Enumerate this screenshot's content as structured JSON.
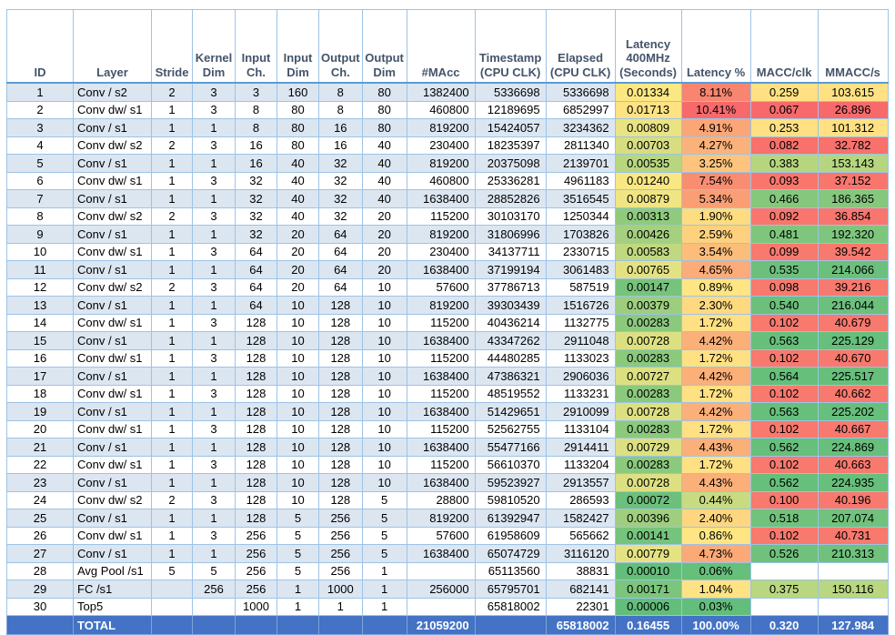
{
  "table": {
    "columns": [
      {
        "label": "ID"
      },
      {
        "label": "Layer"
      },
      {
        "label": "Stride"
      },
      {
        "label": "Kernel\nDim"
      },
      {
        "label": "Input\nCh."
      },
      {
        "label": "Input\nDim"
      },
      {
        "label": "Output\nCh."
      },
      {
        "label": "Output\nDim"
      },
      {
        "label": "#MAcc"
      },
      {
        "label": "Timestamp\n(CPU CLK)"
      },
      {
        "label": "Elapsed\n(CPU CLK)"
      },
      {
        "label": "Latency\n400MHz\n(Seconds)"
      },
      {
        "label": "Latency %"
      },
      {
        "label": "MACC/clk"
      },
      {
        "label": "MMACC/s"
      }
    ],
    "rows": [
      {
        "id": "1",
        "layer": "Conv / s2",
        "stride": "2",
        "kernel": "3",
        "in_ch": "3",
        "in_dim": "160",
        "out_ch": "8",
        "out_dim": "80",
        "macc": "1382400",
        "timestamp": "5336698",
        "elapsed": "5336698",
        "latency": "0.01334",
        "latency_bg": "#FCE883",
        "pct": "8.11%",
        "pct_bg": "#F8856F",
        "macc_clk": "0.259",
        "macc_clk_bg": "#FFE183",
        "mmacc_s": "103.615",
        "mmacc_s_bg": "#FFE183"
      },
      {
        "id": "2",
        "layer": "Conv dw/ s1",
        "stride": "1",
        "kernel": "3",
        "in_ch": "8",
        "in_dim": "80",
        "out_ch": "8",
        "out_dim": "80",
        "macc": "460800",
        "timestamp": "12189695",
        "elapsed": "6852997",
        "latency": "0.01713",
        "latency_bg": "#FFE283",
        "pct": "10.41%",
        "pct_bg": "#F8696B",
        "macc_clk": "0.067",
        "macc_clk_bg": "#F8696B",
        "mmacc_s": "26.896",
        "mmacc_s_bg": "#F8696B"
      },
      {
        "id": "3",
        "layer": "Conv / s1",
        "stride": "1",
        "kernel": "1",
        "in_ch": "8",
        "in_dim": "80",
        "out_ch": "16",
        "out_dim": "80",
        "macc": "819200",
        "timestamp": "15424057",
        "elapsed": "3234362",
        "latency": "0.00809",
        "latency_bg": "#E9E383",
        "pct": "4.91%",
        "pct_bg": "#FBA677",
        "macc_clk": "0.253",
        "macc_clk_bg": "#FFE183",
        "mmacc_s": "101.312",
        "mmacc_s_bg": "#FFE183"
      },
      {
        "id": "4",
        "layer": "Conv dw/ s2",
        "stride": "2",
        "kernel": "3",
        "in_ch": "16",
        "in_dim": "80",
        "out_ch": "16",
        "out_dim": "40",
        "macc": "230400",
        "timestamp": "18235397",
        "elapsed": "2811340",
        "latency": "0.00703",
        "latency_bg": "#D7DE82",
        "pct": "4.27%",
        "pct_bg": "#FBB27A",
        "macc_clk": "0.082",
        "macc_clk_bg": "#F8716C",
        "mmacc_s": "32.782",
        "mmacc_s_bg": "#F8716C"
      },
      {
        "id": "5",
        "layer": "Conv / s1",
        "stride": "1",
        "kernel": "1",
        "in_ch": "16",
        "in_dim": "40",
        "out_ch": "32",
        "out_dim": "40",
        "macc": "819200",
        "timestamp": "20375098",
        "elapsed": "2139701",
        "latency": "0.00535",
        "latency_bg": "#B7D67F",
        "pct": "3.25%",
        "pct_bg": "#FCC47C",
        "macc_clk": "0.383",
        "macc_clk_bg": "#B5D67F",
        "mmacc_s": "153.143",
        "mmacc_s_bg": "#B5D67F"
      },
      {
        "id": "6",
        "layer": "Conv dw/ s1",
        "stride": "1",
        "kernel": "3",
        "in_ch": "32",
        "in_dim": "40",
        "out_ch": "32",
        "out_dim": "40",
        "macc": "460800",
        "timestamp": "25336281",
        "elapsed": "4961183",
        "latency": "0.01240",
        "latency_bg": "#F8E783",
        "pct": "7.54%",
        "pct_bg": "#F98D72",
        "macc_clk": "0.093",
        "macc_clk_bg": "#F8766D",
        "mmacc_s": "37.152",
        "mmacc_s_bg": "#F8766D"
      },
      {
        "id": "7",
        "layer": "Conv / s1",
        "stride": "1",
        "kernel": "1",
        "in_ch": "32",
        "in_dim": "40",
        "out_ch": "32",
        "out_dim": "40",
        "macc": "1638400",
        "timestamp": "28852826",
        "elapsed": "3516545",
        "latency": "0.00879",
        "latency_bg": "#EFE584",
        "pct": "5.34%",
        "pct_bg": "#FA9F75",
        "macc_clk": "0.466",
        "macc_clk_bg": "#84C77D",
        "mmacc_s": "186.365",
        "mmacc_s_bg": "#84C77D"
      },
      {
        "id": "8",
        "layer": "Conv dw/ s2",
        "stride": "2",
        "kernel": "3",
        "in_ch": "32",
        "in_dim": "40",
        "out_ch": "32",
        "out_dim": "20",
        "macc": "115200",
        "timestamp": "30103170",
        "elapsed": "1250344",
        "latency": "0.00313",
        "latency_bg": "#90CB7D",
        "pct": "1.90%",
        "pct_bg": "#FEDC81",
        "macc_clk": "0.092",
        "macc_clk_bg": "#F8766D",
        "mmacc_s": "36.854",
        "mmacc_s_bg": "#F8766D"
      },
      {
        "id": "9",
        "layer": "Conv / s1",
        "stride": "1",
        "kernel": "1",
        "in_ch": "32",
        "in_dim": "20",
        "out_ch": "64",
        "out_dim": "20",
        "macc": "819200",
        "timestamp": "31806996",
        "elapsed": "1703826",
        "latency": "0.00426",
        "latency_bg": "#A4D07F",
        "pct": "2.59%",
        "pct_bg": "#FDD17E",
        "macc_clk": "0.481",
        "macc_clk_bg": "#7EC67D",
        "mmacc_s": "192.320",
        "mmacc_s_bg": "#7EC67D"
      },
      {
        "id": "10",
        "layer": "Conv dw/ s1",
        "stride": "1",
        "kernel": "3",
        "in_ch": "64",
        "in_dim": "20",
        "out_ch": "64",
        "out_dim": "20",
        "macc": "230400",
        "timestamp": "34137711",
        "elapsed": "2330715",
        "latency": "0.00583",
        "latency_bg": "#C0D880",
        "pct": "3.54%",
        "pct_bg": "#FCBD7B",
        "macc_clk": "0.099",
        "macc_clk_bg": "#F8796E",
        "mmacc_s": "39.542",
        "mmacc_s_bg": "#F8796E"
      },
      {
        "id": "11",
        "layer": "Conv / s1",
        "stride": "1",
        "kernel": "1",
        "in_ch": "64",
        "in_dim": "20",
        "out_ch": "64",
        "out_dim": "20",
        "macc": "1638400",
        "timestamp": "37199194",
        "elapsed": "3061483",
        "latency": "0.00765",
        "latency_bg": "#E3E283",
        "pct": "4.65%",
        "pct_bg": "#FBAC78",
        "macc_clk": "0.535",
        "macc_clk_bg": "#6CC07C",
        "mmacc_s": "214.066",
        "mmacc_s_bg": "#6CC07C"
      },
      {
        "id": "12",
        "layer": "Conv dw/ s2",
        "stride": "2",
        "kernel": "3",
        "in_ch": "64",
        "in_dim": "20",
        "out_ch": "64",
        "out_dim": "10",
        "macc": "57600",
        "timestamp": "37786713",
        "elapsed": "587519",
        "latency": "0.00147",
        "latency_bg": "#76C37C",
        "pct": "0.89%",
        "pct_bg": "#FFE583",
        "macc_clk": "0.098",
        "macc_clk_bg": "#F8796E",
        "mmacc_s": "39.216",
        "mmacc_s_bg": "#F8796E"
      },
      {
        "id": "13",
        "layer": "Conv / s1",
        "stride": "1",
        "kernel": "1",
        "in_ch": "64",
        "in_dim": "10",
        "out_ch": "128",
        "out_dim": "10",
        "macc": "819200",
        "timestamp": "39303439",
        "elapsed": "1516726",
        "latency": "0.00379",
        "latency_bg": "#9CCE7E",
        "pct": "2.30%",
        "pct_bg": "#FED980",
        "macc_clk": "0.540",
        "macc_clk_bg": "#6CC07C",
        "mmacc_s": "216.044",
        "mmacc_s_bg": "#6CC07C"
      },
      {
        "id": "14",
        "layer": "Conv dw/ s1",
        "stride": "1",
        "kernel": "3",
        "in_ch": "128",
        "in_dim": "10",
        "out_ch": "128",
        "out_dim": "10",
        "macc": "115200",
        "timestamp": "40436214",
        "elapsed": "1132775",
        "latency": "0.00283",
        "latency_bg": "#8BC97D",
        "pct": "1.72%",
        "pct_bg": "#FFE083",
        "macc_clk": "0.102",
        "macc_clk_bg": "#F8796E",
        "mmacc_s": "40.679",
        "mmacc_s_bg": "#F8796E"
      },
      {
        "id": "15",
        "layer": "Conv / s1",
        "stride": "1",
        "kernel": "1",
        "in_ch": "128",
        "in_dim": "10",
        "out_ch": "128",
        "out_dim": "10",
        "macc": "1638400",
        "timestamp": "43347262",
        "elapsed": "2911048",
        "latency": "0.00728",
        "latency_bg": "#DCE082",
        "pct": "4.42%",
        "pct_bg": "#FBAF79",
        "macc_clk": "0.563",
        "macc_clk_bg": "#66BF7B",
        "mmacc_s": "225.129",
        "mmacc_s_bg": "#66BF7B"
      },
      {
        "id": "16",
        "layer": "Conv dw/ s1",
        "stride": "1",
        "kernel": "3",
        "in_ch": "128",
        "in_dim": "10",
        "out_ch": "128",
        "out_dim": "10",
        "macc": "115200",
        "timestamp": "44480285",
        "elapsed": "1133023",
        "latency": "0.00283",
        "latency_bg": "#8BC97D",
        "pct": "1.72%",
        "pct_bg": "#FFE083",
        "macc_clk": "0.102",
        "macc_clk_bg": "#F8796E",
        "mmacc_s": "40.670",
        "mmacc_s_bg": "#F8796E"
      },
      {
        "id": "17",
        "layer": "Conv / s1",
        "stride": "1",
        "kernel": "1",
        "in_ch": "128",
        "in_dim": "10",
        "out_ch": "128",
        "out_dim": "10",
        "macc": "1638400",
        "timestamp": "47386321",
        "elapsed": "2906036",
        "latency": "0.00727",
        "latency_bg": "#DCE082",
        "pct": "4.42%",
        "pct_bg": "#FBAF79",
        "macc_clk": "0.564",
        "macc_clk_bg": "#66BF7B",
        "mmacc_s": "225.517",
        "mmacc_s_bg": "#66BF7B"
      },
      {
        "id": "18",
        "layer": "Conv dw/ s1",
        "stride": "1",
        "kernel": "3",
        "in_ch": "128",
        "in_dim": "10",
        "out_ch": "128",
        "out_dim": "10",
        "macc": "115200",
        "timestamp": "48519552",
        "elapsed": "1133231",
        "latency": "0.00283",
        "latency_bg": "#8BC97D",
        "pct": "1.72%",
        "pct_bg": "#FFE083",
        "macc_clk": "0.102",
        "macc_clk_bg": "#F8796E",
        "mmacc_s": "40.662",
        "mmacc_s_bg": "#F8796E"
      },
      {
        "id": "19",
        "layer": "Conv / s1",
        "stride": "1",
        "kernel": "1",
        "in_ch": "128",
        "in_dim": "10",
        "out_ch": "128",
        "out_dim": "10",
        "macc": "1638400",
        "timestamp": "51429651",
        "elapsed": "2910099",
        "latency": "0.00728",
        "latency_bg": "#DCE082",
        "pct": "4.42%",
        "pct_bg": "#FBAF79",
        "macc_clk": "0.563",
        "macc_clk_bg": "#66BF7B",
        "mmacc_s": "225.202",
        "mmacc_s_bg": "#66BF7B"
      },
      {
        "id": "20",
        "layer": "Conv dw/ s1",
        "stride": "1",
        "kernel": "3",
        "in_ch": "128",
        "in_dim": "10",
        "out_ch": "128",
        "out_dim": "10",
        "macc": "115200",
        "timestamp": "52562755",
        "elapsed": "1133104",
        "latency": "0.00283",
        "latency_bg": "#8BC97D",
        "pct": "1.72%",
        "pct_bg": "#FFE083",
        "macc_clk": "0.102",
        "macc_clk_bg": "#F8796E",
        "mmacc_s": "40.667",
        "mmacc_s_bg": "#F8796E"
      },
      {
        "id": "21",
        "layer": "Conv / s1",
        "stride": "1",
        "kernel": "1",
        "in_ch": "128",
        "in_dim": "10",
        "out_ch": "128",
        "out_dim": "10",
        "macc": "1638400",
        "timestamp": "55477166",
        "elapsed": "2914411",
        "latency": "0.00729",
        "latency_bg": "#DCE082",
        "pct": "4.43%",
        "pct_bg": "#FBAF79",
        "macc_clk": "0.562",
        "macc_clk_bg": "#66BF7B",
        "mmacc_s": "224.869",
        "mmacc_s_bg": "#66BF7B"
      },
      {
        "id": "22",
        "layer": "Conv dw/ s1",
        "stride": "1",
        "kernel": "3",
        "in_ch": "128",
        "in_dim": "10",
        "out_ch": "128",
        "out_dim": "10",
        "macc": "115200",
        "timestamp": "56610370",
        "elapsed": "1133204",
        "latency": "0.00283",
        "latency_bg": "#8BC97D",
        "pct": "1.72%",
        "pct_bg": "#FFE083",
        "macc_clk": "0.102",
        "macc_clk_bg": "#F8796E",
        "mmacc_s": "40.663",
        "mmacc_s_bg": "#F8796E"
      },
      {
        "id": "23",
        "layer": "Conv / s1",
        "stride": "1",
        "kernel": "1",
        "in_ch": "128",
        "in_dim": "10",
        "out_ch": "128",
        "out_dim": "10",
        "macc": "1638400",
        "timestamp": "59523927",
        "elapsed": "2913557",
        "latency": "0.00728",
        "latency_bg": "#DCE082",
        "pct": "4.43%",
        "pct_bg": "#FBAF79",
        "macc_clk": "0.562",
        "macc_clk_bg": "#66BF7B",
        "mmacc_s": "224.935",
        "mmacc_s_bg": "#66BF7B"
      },
      {
        "id": "24",
        "layer": "Conv dw/ s2",
        "stride": "2",
        "kernel": "3",
        "in_ch": "128",
        "in_dim": "10",
        "out_ch": "128",
        "out_dim": "5",
        "macc": "28800",
        "timestamp": "59810520",
        "elapsed": "286593",
        "latency": "0.00072",
        "latency_bg": "#6CC07B",
        "pct": "0.44%",
        "pct_bg": "#C9DB80",
        "macc_clk": "0.100",
        "macc_clk_bg": "#F8796E",
        "mmacc_s": "40.196",
        "mmacc_s_bg": "#F8796E"
      },
      {
        "id": "25",
        "layer": "Conv / s1",
        "stride": "1",
        "kernel": "1",
        "in_ch": "128",
        "in_dim": "5",
        "out_ch": "256",
        "out_dim": "5",
        "macc": "819200",
        "timestamp": "61392947",
        "elapsed": "1582427",
        "latency": "0.00396",
        "latency_bg": "#9FCF7E",
        "pct": "2.40%",
        "pct_bg": "#FED67F",
        "macc_clk": "0.518",
        "macc_clk_bg": "#71C27C",
        "mmacc_s": "207.074",
        "mmacc_s_bg": "#71C27C"
      },
      {
        "id": "26",
        "layer": "Conv dw/ s1",
        "stride": "1",
        "kernel": "3",
        "in_ch": "256",
        "in_dim": "5",
        "out_ch": "256",
        "out_dim": "5",
        "macc": "57600",
        "timestamp": "61958609",
        "elapsed": "565662",
        "latency": "0.00141",
        "latency_bg": "#75C37C",
        "pct": "0.86%",
        "pct_bg": "#FFE583",
        "macc_clk": "0.102",
        "macc_clk_bg": "#F8796E",
        "mmacc_s": "40.731",
        "mmacc_s_bg": "#F8796E"
      },
      {
        "id": "27",
        "layer": "Conv / s1",
        "stride": "1",
        "kernel": "1",
        "in_ch": "256",
        "in_dim": "5",
        "out_ch": "256",
        "out_dim": "5",
        "macc": "1638400",
        "timestamp": "65074729",
        "elapsed": "3116120",
        "latency": "0.00779",
        "latency_bg": "#E5E283",
        "pct": "4.73%",
        "pct_bg": "#FBA977",
        "macc_clk": "0.526",
        "macc_clk_bg": "#6FC17C",
        "mmacc_s": "210.313",
        "mmacc_s_bg": "#6FC17C"
      },
      {
        "id": "28",
        "layer": "Avg Pool /s1",
        "stride": "5",
        "kernel": "5",
        "in_ch": "256",
        "in_dim": "5",
        "out_ch": "256",
        "out_dim": "1",
        "macc": "",
        "timestamp": "65113560",
        "elapsed": "38831",
        "latency": "0.00010",
        "latency_bg": "#64BE7B",
        "pct": "0.06%",
        "pct_bg": "#66BF7B",
        "macc_clk": "",
        "macc_clk_bg": "#FFFFFF",
        "mmacc_s": "",
        "mmacc_s_bg": "#FFFFFF"
      },
      {
        "id": "29",
        "layer": "FC /s1",
        "stride": "",
        "kernel": "256",
        "in_ch": "256",
        "in_dim": "1",
        "out_ch": "1000",
        "out_dim": "1",
        "macc": "256000",
        "timestamp": "65795701",
        "elapsed": "682141",
        "latency": "0.00171",
        "latency_bg": "#7BC57C",
        "pct": "1.04%",
        "pct_bg": "#FFE283",
        "macc_clk": "0.375",
        "macc_clk_bg": "#B8D780",
        "mmacc_s": "150.116",
        "mmacc_s_bg": "#B8D780"
      },
      {
        "id": "30",
        "layer": "Top5",
        "stride": "",
        "kernel": "",
        "in_ch": "1000",
        "in_dim": "1",
        "out_ch": "1",
        "out_dim": "1",
        "macc": "",
        "timestamp": "65818002",
        "elapsed": "22301",
        "latency": "0.00006",
        "latency_bg": "#63BE7B",
        "pct": "0.03%",
        "pct_bg": "#63BE7B",
        "macc_clk": "",
        "macc_clk_bg": "#FFFFFF",
        "mmacc_s": "",
        "mmacc_s_bg": "#FFFFFF"
      }
    ],
    "total": {
      "label": "TOTAL",
      "macc": "21059200",
      "timestamp": "",
      "elapsed": "65818002",
      "latency": "0.16455",
      "latency_pct": "100.00%",
      "macc_clk": "0.320",
      "mmacc_s": "127.984"
    }
  },
  "colors": {
    "stripe": "#DCE6F1",
    "grid_border": "#9DC3E6",
    "header_text": "#44546A",
    "header_underline": "#5B9BD5",
    "total_row_bg": "#4472C4",
    "total_row_text": "#FFFFFF",
    "scale_red": "#F8696B",
    "scale_yellow": "#FFEB84",
    "scale_green": "#63BE7B"
  }
}
